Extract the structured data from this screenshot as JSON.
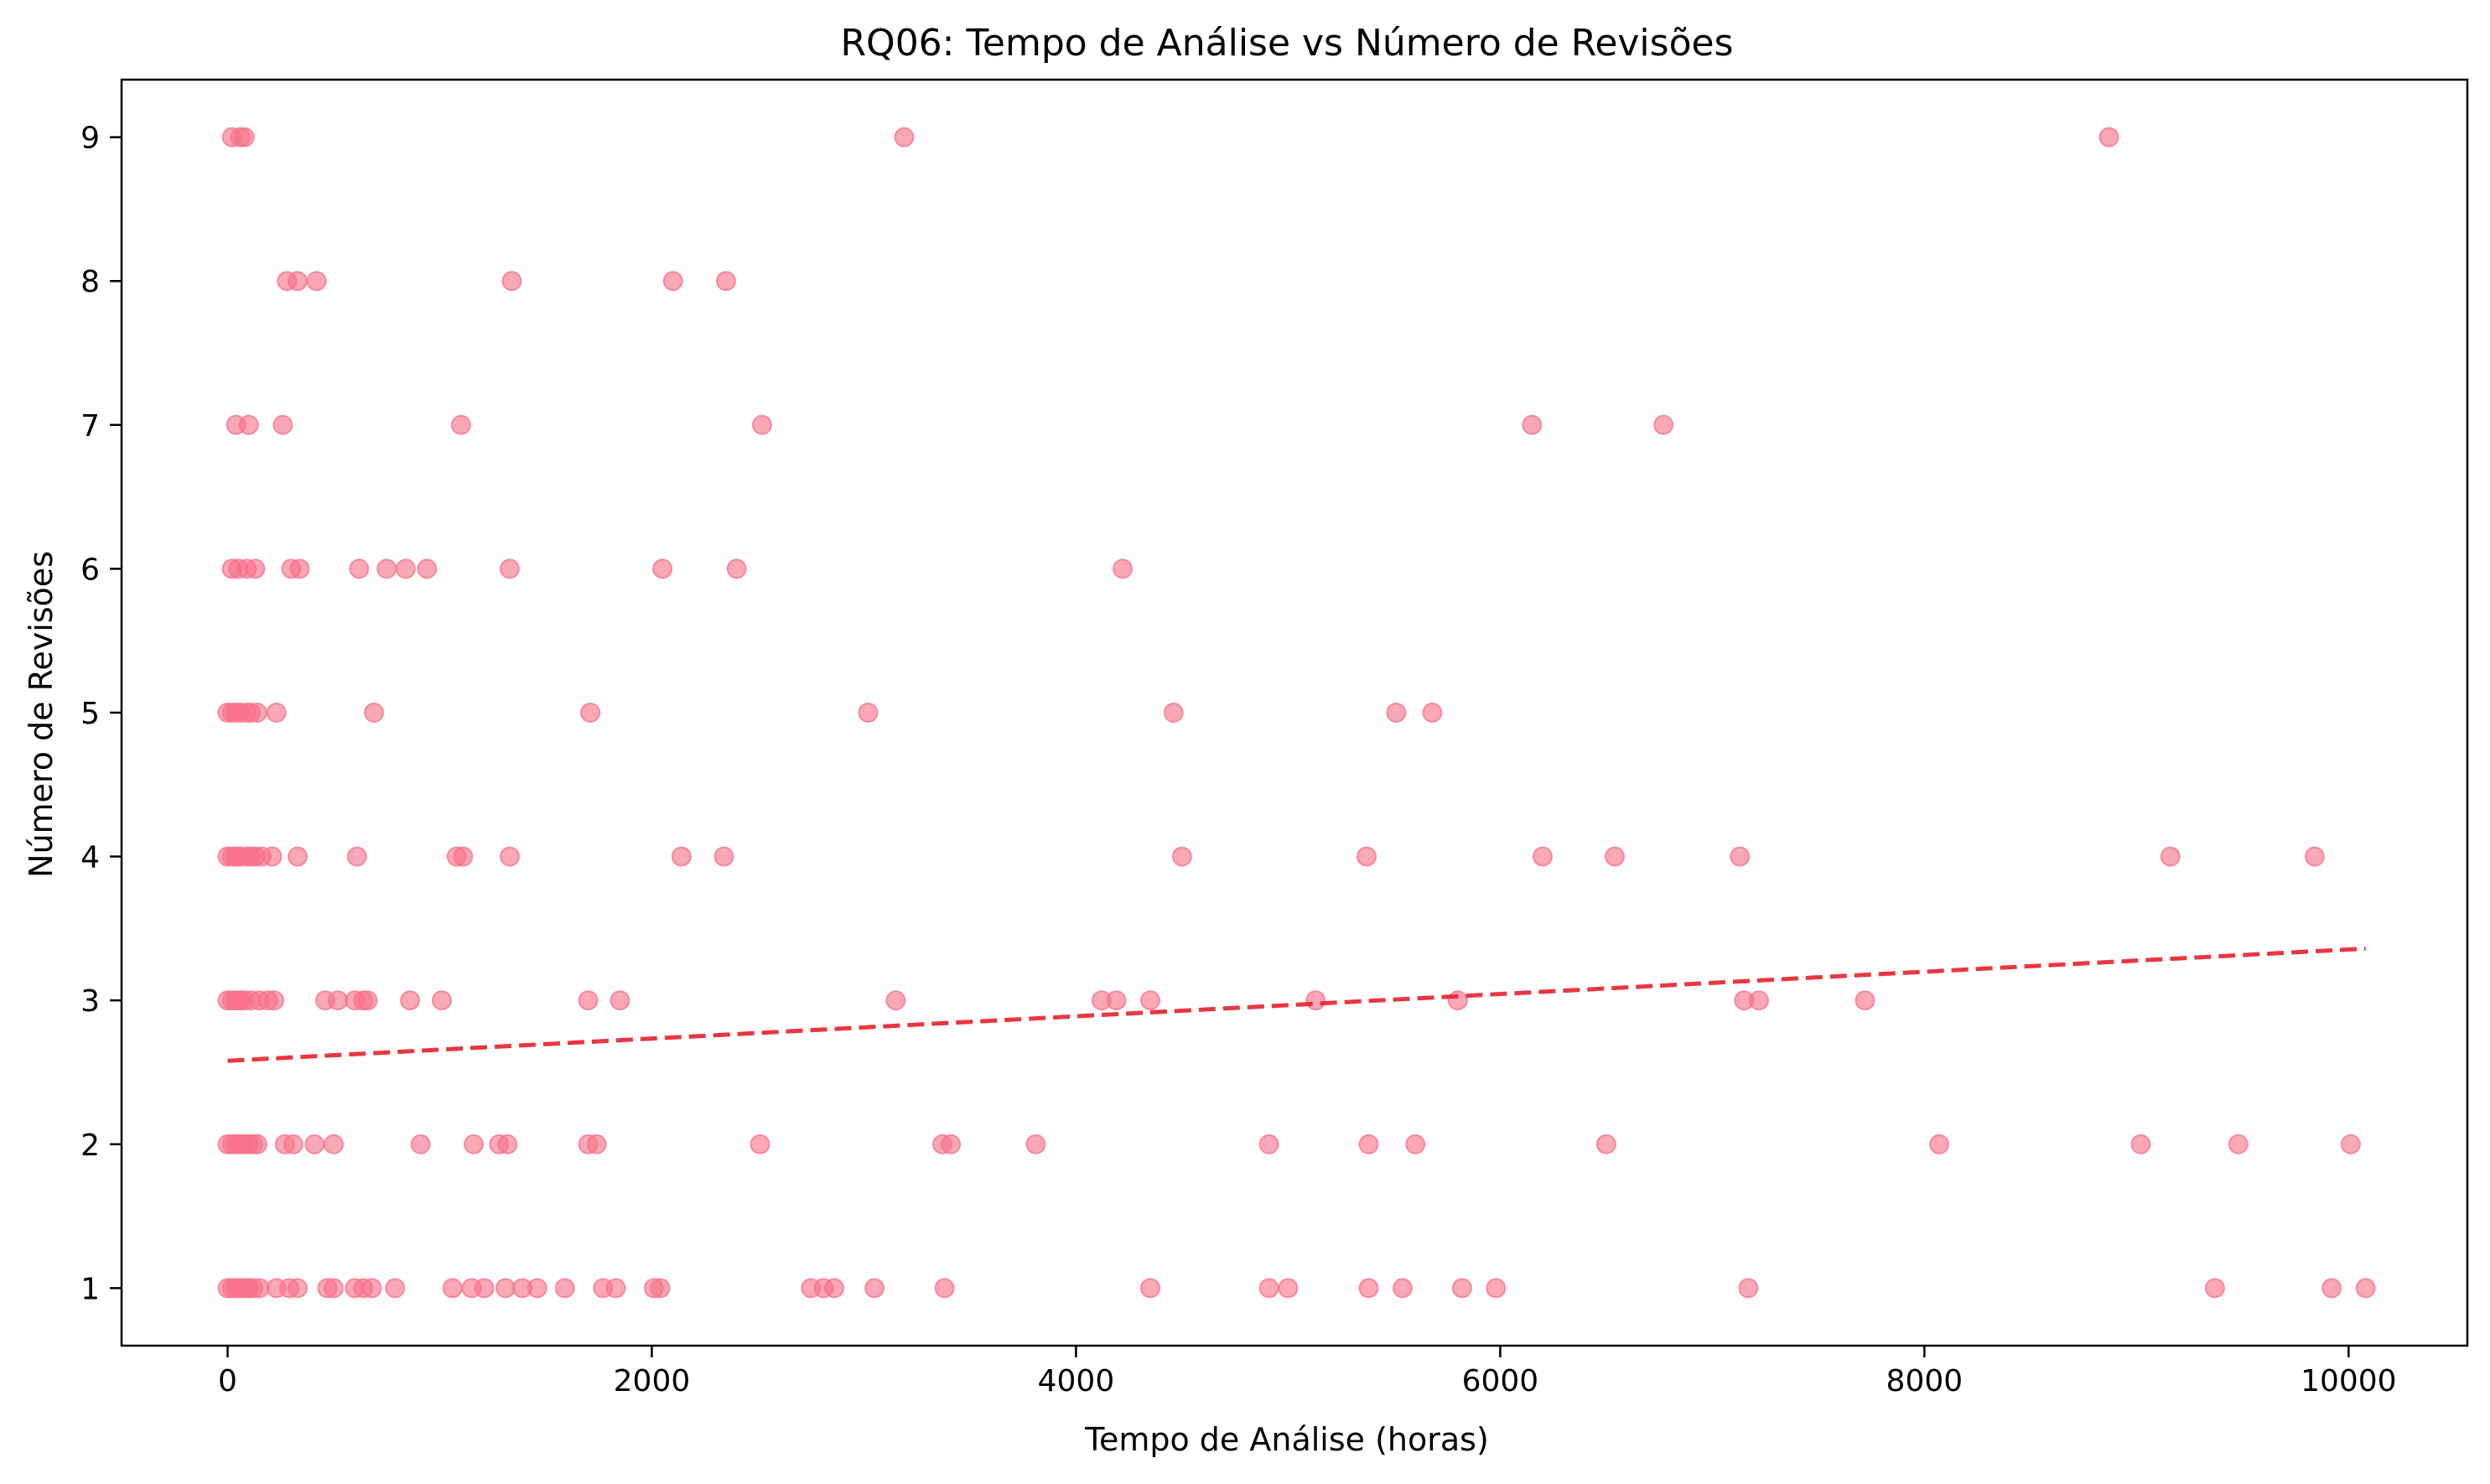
{
  "chart_data": {
    "type": "scatter",
    "title": "RQ06: Tempo de Análise vs Número de Revisões",
    "xlabel": "Tempo de Análise (horas)",
    "ylabel": "Número de Revisões",
    "xlim": [
      -500,
      10560
    ],
    "ylim": [
      0.6,
      9.4
    ],
    "xticks": [
      0,
      2000,
      4000,
      6000,
      8000,
      10000
    ],
    "yticks": [
      1,
      2,
      3,
      4,
      5,
      6,
      7,
      8,
      9
    ],
    "grid": false,
    "legend": "none",
    "point_color": "#f77189",
    "trend_color": "#e8202a",
    "series": [
      {
        "points": [
          [
            20,
            9
          ],
          [
            60,
            9
          ],
          [
            80,
            9
          ],
          [
            3190,
            9
          ],
          [
            8870,
            9
          ],
          [
            280,
            8
          ],
          [
            330,
            8
          ],
          [
            420,
            8
          ],
          [
            1340,
            8
          ],
          [
            2100,
            8
          ],
          [
            2350,
            8
          ],
          [
            40,
            7
          ],
          [
            100,
            7
          ],
          [
            260,
            7
          ],
          [
            1100,
            7
          ],
          [
            2520,
            7
          ],
          [
            6150,
            7
          ],
          [
            6770,
            7
          ],
          [
            20,
            6
          ],
          [
            50,
            6
          ],
          [
            90,
            6
          ],
          [
            130,
            6
          ],
          [
            300,
            6
          ],
          [
            340,
            6
          ],
          [
            620,
            6
          ],
          [
            750,
            6
          ],
          [
            840,
            6
          ],
          [
            940,
            6
          ],
          [
            1330,
            6
          ],
          [
            2050,
            6
          ],
          [
            2400,
            6
          ],
          [
            4220,
            6
          ],
          [
            0,
            5
          ],
          [
            20,
            5
          ],
          [
            40,
            5
          ],
          [
            60,
            5
          ],
          [
            90,
            5
          ],
          [
            110,
            5
          ],
          [
            140,
            5
          ],
          [
            230,
            5
          ],
          [
            690,
            5
          ],
          [
            1710,
            5
          ],
          [
            3020,
            5
          ],
          [
            4460,
            5
          ],
          [
            5510,
            5
          ],
          [
            5680,
            5
          ],
          [
            0,
            4
          ],
          [
            20,
            4
          ],
          [
            40,
            4
          ],
          [
            60,
            4
          ],
          [
            90,
            4
          ],
          [
            110,
            4
          ],
          [
            130,
            4
          ],
          [
            160,
            4
          ],
          [
            210,
            4
          ],
          [
            330,
            4
          ],
          [
            610,
            4
          ],
          [
            1080,
            4
          ],
          [
            1110,
            4
          ],
          [
            1330,
            4
          ],
          [
            2140,
            4
          ],
          [
            2340,
            4
          ],
          [
            4500,
            4
          ],
          [
            5370,
            4
          ],
          [
            6200,
            4
          ],
          [
            6540,
            4
          ],
          [
            7130,
            4
          ],
          [
            9160,
            4
          ],
          [
            9840,
            4
          ],
          [
            0,
            3
          ],
          [
            20,
            3
          ],
          [
            40,
            3
          ],
          [
            60,
            3
          ],
          [
            80,
            3
          ],
          [
            110,
            3
          ],
          [
            150,
            3
          ],
          [
            190,
            3
          ],
          [
            220,
            3
          ],
          [
            460,
            3
          ],
          [
            520,
            3
          ],
          [
            600,
            3
          ],
          [
            640,
            3
          ],
          [
            660,
            3
          ],
          [
            860,
            3
          ],
          [
            1010,
            3
          ],
          [
            1700,
            3
          ],
          [
            1850,
            3
          ],
          [
            3150,
            3
          ],
          [
            4120,
            3
          ],
          [
            4190,
            3
          ],
          [
            4350,
            3
          ],
          [
            5130,
            3
          ],
          [
            5800,
            3
          ],
          [
            7150,
            3
          ],
          [
            7220,
            3
          ],
          [
            7720,
            3
          ],
          [
            0,
            2
          ],
          [
            20,
            2
          ],
          [
            40,
            2
          ],
          [
            60,
            2
          ],
          [
            80,
            2
          ],
          [
            100,
            2
          ],
          [
            120,
            2
          ],
          [
            140,
            2
          ],
          [
            270,
            2
          ],
          [
            310,
            2
          ],
          [
            410,
            2
          ],
          [
            500,
            2
          ],
          [
            910,
            2
          ],
          [
            1160,
            2
          ],
          [
            1280,
            2
          ],
          [
            1320,
            2
          ],
          [
            1700,
            2
          ],
          [
            1740,
            2
          ],
          [
            2510,
            2
          ],
          [
            3370,
            2
          ],
          [
            3410,
            2
          ],
          [
            3810,
            2
          ],
          [
            4910,
            2
          ],
          [
            5380,
            2
          ],
          [
            5600,
            2
          ],
          [
            6500,
            2
          ],
          [
            8070,
            2
          ],
          [
            9020,
            2
          ],
          [
            9480,
            2
          ],
          [
            10010,
            2
          ],
          [
            0,
            1
          ],
          [
            20,
            1
          ],
          [
            40,
            1
          ],
          [
            60,
            1
          ],
          [
            80,
            1
          ],
          [
            100,
            1
          ],
          [
            120,
            1
          ],
          [
            150,
            1
          ],
          [
            230,
            1
          ],
          [
            290,
            1
          ],
          [
            330,
            1
          ],
          [
            470,
            1
          ],
          [
            500,
            1
          ],
          [
            600,
            1
          ],
          [
            640,
            1
          ],
          [
            680,
            1
          ],
          [
            790,
            1
          ],
          [
            1060,
            1
          ],
          [
            1150,
            1
          ],
          [
            1210,
            1
          ],
          [
            1310,
            1
          ],
          [
            1390,
            1
          ],
          [
            1460,
            1
          ],
          [
            1590,
            1
          ],
          [
            1770,
            1
          ],
          [
            1830,
            1
          ],
          [
            2010,
            1
          ],
          [
            2040,
            1
          ],
          [
            2750,
            1
          ],
          [
            2810,
            1
          ],
          [
            2860,
            1
          ],
          [
            3050,
            1
          ],
          [
            3380,
            1
          ],
          [
            4350,
            1
          ],
          [
            4910,
            1
          ],
          [
            5000,
            1
          ],
          [
            5380,
            1
          ],
          [
            5540,
            1
          ],
          [
            5820,
            1
          ],
          [
            5980,
            1
          ],
          [
            7170,
            1
          ],
          [
            9370,
            1
          ],
          [
            9920,
            1
          ],
          [
            10080,
            1
          ]
        ]
      }
    ],
    "trend_line": {
      "x": [
        0,
        10080
      ],
      "y": [
        2.58,
        3.36
      ]
    }
  }
}
